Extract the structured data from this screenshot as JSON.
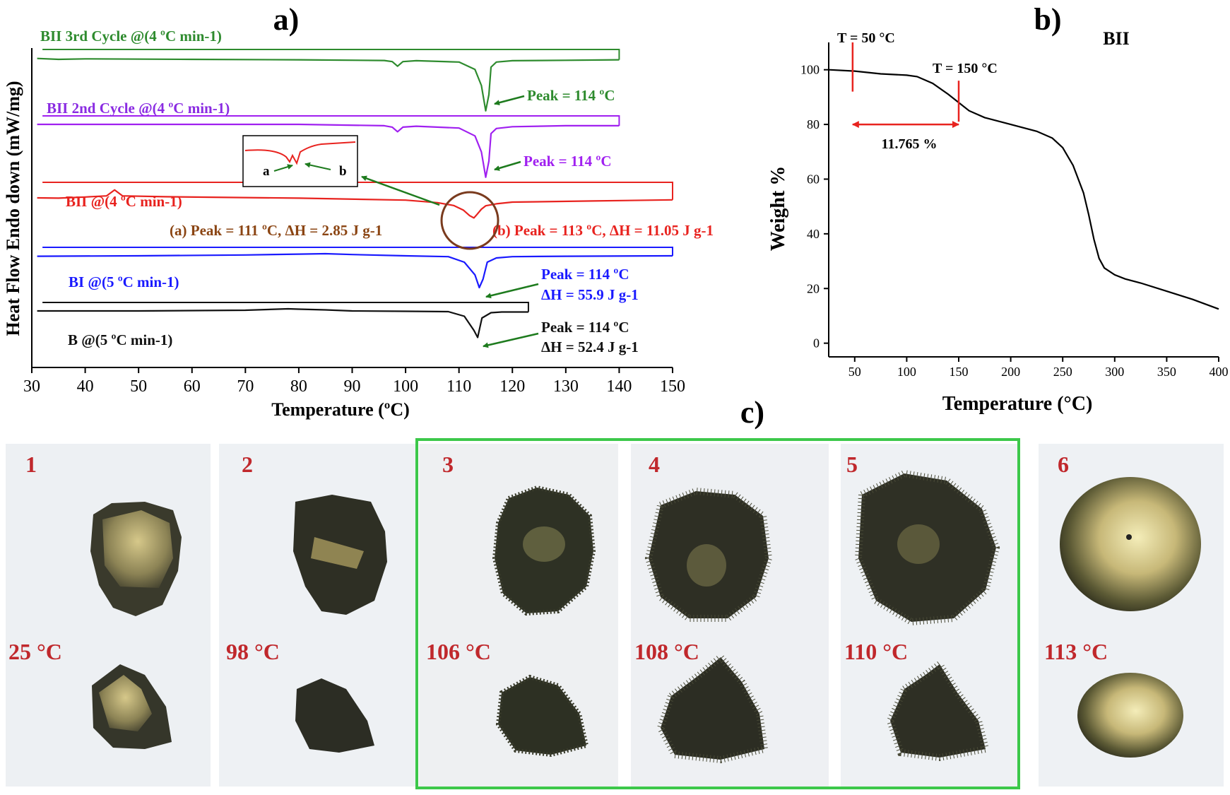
{
  "panel_labels": {
    "a": "a)",
    "b": "b)",
    "c": "c)"
  },
  "chart_data": [
    {
      "type": "line",
      "title": "a)",
      "xlabel": "Temperature (ºC)",
      "ylabel": "Heat Flow Endo down (mW/mg)",
      "xlim": [
        30,
        150
      ],
      "xticks": [
        30,
        40,
        50,
        60,
        70,
        80,
        90,
        100,
        110,
        120,
        130,
        140,
        150
      ],
      "series": [
        {
          "name": "BII 3rd Cycle @(4 ºC min-1)",
          "color": "#2e8b2e",
          "x": [
            31,
            35,
            40,
            60,
            80,
            96,
            97.5,
            98.5,
            99.5,
            102,
            110,
            113,
            114.2,
            115,
            115.6,
            116,
            117,
            120,
            130,
            140
          ],
          "y": [
            0.1,
            0.3,
            0.2,
            0.3,
            0.4,
            0.55,
            0.8,
            1.8,
            0.8,
            0.6,
            0.9,
            2.5,
            6,
            11.5,
            8,
            2,
            0.9,
            0.6,
            0.5,
            0.4
          ],
          "peak_label": "Peak = 114 ºC"
        },
        {
          "name": "BII 2nd Cycle @(4 ºC min-1)",
          "color": "#a020f0",
          "x": [
            31,
            40,
            60,
            80,
            96,
            97.5,
            98.5,
            99.5,
            102,
            110,
            113,
            114.2,
            115,
            115.6,
            116,
            117,
            120,
            130,
            140
          ],
          "y": [
            0,
            0,
            0,
            0,
            0.3,
            0.6,
            1.6,
            0.6,
            0.4,
            0.8,
            2.5,
            6,
            11.5,
            8,
            2,
            0.9,
            0.5,
            0.3,
            0.3
          ],
          "peak_label": "Peak = 114 ºC"
        },
        {
          "name": "BII @(4 ºC min-1)",
          "color": "#e8231f",
          "x": [
            31,
            35,
            40,
            44,
            45.5,
            47,
            55,
            80,
            100,
            106,
            109,
            110.8,
            112,
            112.8,
            113.4,
            114.2,
            115,
            117,
            120,
            135,
            150
          ],
          "y": [
            2.5,
            2.6,
            2.2,
            1.8,
            -0.3,
            1.8,
            2.1,
            2.6,
            3.3,
            4.2,
            5.2,
            6.8,
            8.8,
            9.6,
            8.3,
            6.5,
            5.3,
            4.6,
            4.0,
            3.6,
            3.2
          ],
          "peak_a": "(a) Peak = 111 ºC, ΔH = 2.85 J g-1",
          "peak_b": "(b) Peak = 113 ºC, ΔH = 11.05 J g-1"
        },
        {
          "name": "BI @(5 ºC min-1)",
          "color": "#1a1aff",
          "x": [
            31,
            50,
            70,
            80,
            85,
            90,
            100,
            108,
            111,
            113,
            113.8,
            114.5,
            115.3,
            117,
            120,
            130,
            150
          ],
          "y": [
            0.1,
            0,
            -0.2,
            -0.4,
            -0.5,
            -0.3,
            0,
            0.2,
            1.5,
            4.5,
            7.5,
            5.5,
            1.5,
            0.5,
            0.2,
            0.1,
            0
          ],
          "peak_label": "Peak = 114 ºC",
          "dh_label": "ΔH = 55.9 J g-1"
        },
        {
          "name": "B @(5 ºC min-1)",
          "color": "#111111",
          "x": [
            31,
            50,
            70,
            78,
            80,
            85,
            90,
            100,
            108,
            111,
            112.8,
            113.5,
            114.3,
            116,
            118,
            123
          ],
          "y": [
            0,
            0,
            -0.2,
            -0.6,
            -0.5,
            -0.3,
            0,
            0.1,
            0.2,
            1.5,
            5.5,
            7.5,
            2,
            0.5,
            0.3,
            0.3
          ],
          "peak_label": "Peak = 114 ºC",
          "dh_label": "ΔH = 52.4 J g-1"
        }
      ],
      "inset_labels": {
        "a": "a",
        "b": "b"
      }
    },
    {
      "type": "line",
      "title": "BII",
      "xlabel": "Temperature (°C)",
      "ylabel": "Weight %",
      "xlim": [
        25,
        400
      ],
      "ylim": [
        -5,
        110
      ],
      "xticks": [
        50,
        100,
        150,
        200,
        250,
        300,
        350,
        400
      ],
      "yticks": [
        0,
        20,
        40,
        60,
        80,
        100
      ],
      "x": [
        25,
        50,
        75,
        100,
        110,
        125,
        140,
        150,
        160,
        175,
        200,
        225,
        240,
        250,
        260,
        270,
        275,
        280,
        285,
        290,
        300,
        310,
        325,
        350,
        375,
        400
      ],
      "y": [
        100,
        99.5,
        98.5,
        98,
        97.5,
        95,
        91,
        88,
        85,
        82.5,
        80,
        77.5,
        75,
        71.5,
        65,
        55,
        47,
        38,
        31,
        27.5,
        25,
        23.5,
        22,
        19,
        16,
        12.5
      ],
      "annotations": {
        "t50": "T = 50 °C",
        "t150": "T = 150 °C",
        "loss": "11.765 %"
      }
    }
  ],
  "micrographs": [
    {
      "number": "1",
      "temp": "25 °C"
    },
    {
      "number": "2",
      "temp": "98 °C"
    },
    {
      "number": "3",
      "temp": "106 °C"
    },
    {
      "number": "4",
      "temp": "108 °C"
    },
    {
      "number": "5",
      "temp": "110 °C"
    },
    {
      "number": "6",
      "temp": "113 °C"
    }
  ],
  "colors": {
    "highlight_box": "#3cc84a",
    "label_red": "#c0282c"
  }
}
